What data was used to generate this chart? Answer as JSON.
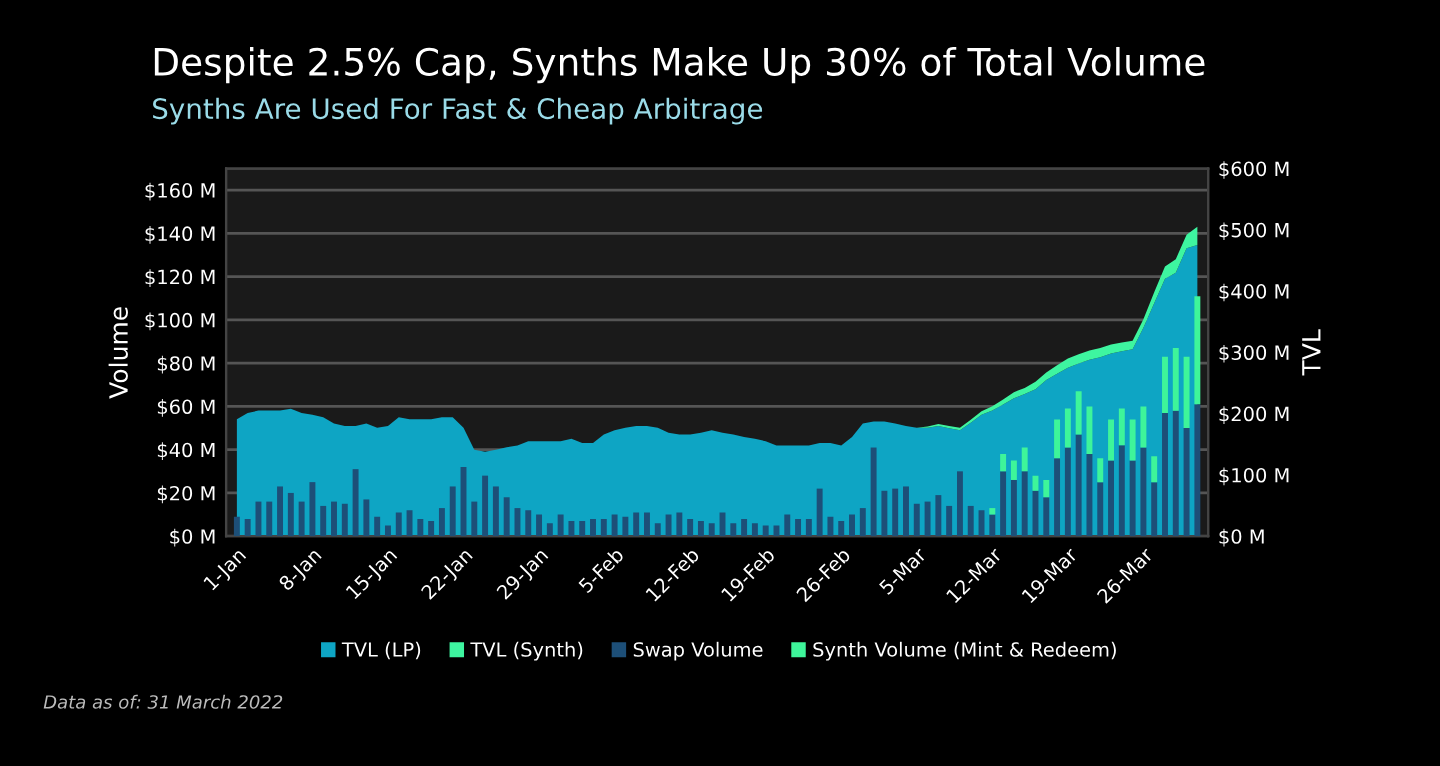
{
  "chart_data": {
    "type": "bar",
    "title": "Despite 2.5% Cap, Synths Make Up 30% of Total Volume",
    "subtitle": "Synths Are Used For Fast & Cheap Arbitrage",
    "ylabel": "Volume",
    "y2label": "TVL",
    "annotations": [
      "Data as of: 31 March 2022"
    ],
    "x": [
      "2022-01-01",
      "2022-01-02",
      "2022-01-03",
      "2022-01-04",
      "2022-01-05",
      "2022-01-06",
      "2022-01-07",
      "2022-01-08",
      "2022-01-09",
      "2022-01-10",
      "2022-01-11",
      "2022-01-12",
      "2022-01-13",
      "2022-01-14",
      "2022-01-15",
      "2022-01-16",
      "2022-01-17",
      "2022-01-18",
      "2022-01-19",
      "2022-01-20",
      "2022-01-21",
      "2022-01-22",
      "2022-01-23",
      "2022-01-24",
      "2022-01-25",
      "2022-01-26",
      "2022-01-27",
      "2022-01-28",
      "2022-01-29",
      "2022-01-30",
      "2022-01-31",
      "2022-02-01",
      "2022-02-02",
      "2022-02-03",
      "2022-02-04",
      "2022-02-05",
      "2022-02-06",
      "2022-02-07",
      "2022-02-08",
      "2022-02-09",
      "2022-02-10",
      "2022-02-11",
      "2022-02-12",
      "2022-02-13",
      "2022-02-14",
      "2022-02-15",
      "2022-02-16",
      "2022-02-17",
      "2022-02-18",
      "2022-02-19",
      "2022-02-20",
      "2022-02-21",
      "2022-02-22",
      "2022-02-23",
      "2022-02-24",
      "2022-02-25",
      "2022-02-26",
      "2022-02-27",
      "2022-02-28",
      "2022-03-01",
      "2022-03-02",
      "2022-03-03",
      "2022-03-04",
      "2022-03-05",
      "2022-03-06",
      "2022-03-07",
      "2022-03-08",
      "2022-03-09",
      "2022-03-10",
      "2022-03-11",
      "2022-03-12",
      "2022-03-13",
      "2022-03-14",
      "2022-03-15",
      "2022-03-16",
      "2022-03-17",
      "2022-03-18",
      "2022-03-19",
      "2022-03-20",
      "2022-03-21",
      "2022-03-22",
      "2022-03-23",
      "2022-03-24",
      "2022-03-25",
      "2022-03-26",
      "2022-03-27",
      "2022-03-28",
      "2022-03-29",
      "2022-03-30",
      "2022-03-31"
    ],
    "stacked": true,
    "series": [
      {
        "name": "TVL (LP)",
        "type": "area",
        "axis": "y2",
        "color": "#0ea5c4",
        "values": [
          191,
          201,
          205,
          205,
          205,
          208,
          201,
          198,
          194,
          184,
          180,
          180,
          184,
          177,
          180,
          194,
          191,
          191,
          191,
          194,
          194,
          177,
          141,
          138,
          141,
          145,
          148,
          155,
          155,
          155,
          155,
          159,
          152,
          152,
          166,
          173,
          177,
          180,
          180,
          177,
          169,
          166,
          166,
          169,
          173,
          169,
          166,
          162,
          159,
          155,
          148,
          148,
          148,
          148,
          152,
          152,
          148,
          162,
          184,
          187,
          187,
          184,
          180,
          177,
          177,
          180,
          176,
          173,
          185,
          198,
          205,
          215,
          225,
          232,
          240,
          255,
          265,
          275,
          282,
          288,
          292,
          298,
          302,
          305,
          340,
          380,
          420,
          430,
          470,
          475
        ]
      },
      {
        "name": "TVL (Synth)",
        "type": "area",
        "axis": "y2",
        "color": "#3ef5a0",
        "values": [
          0,
          0,
          0,
          0,
          0,
          0,
          0,
          0,
          0,
          0,
          0,
          0,
          0,
          0,
          0,
          0,
          0,
          0,
          0,
          0,
          0,
          0,
          0,
          0,
          0,
          0,
          0,
          0,
          0,
          0,
          0,
          0,
          0,
          0,
          0,
          0,
          0,
          0,
          0,
          0,
          0,
          0,
          0,
          0,
          0,
          0,
          0,
          0,
          0,
          0,
          0,
          0,
          0,
          0,
          0,
          0,
          0,
          0,
          0,
          0,
          0,
          0,
          0,
          0,
          2,
          3,
          4,
          4,
          5,
          6,
          7,
          8,
          10,
          10,
          12,
          12,
          14,
          15,
          15,
          15,
          15,
          15,
          14,
          14,
          14,
          18,
          20,
          22,
          22,
          30
        ]
      },
      {
        "name": "Swap Volume",
        "color": "#1d4f78",
        "values": [
          9,
          8,
          16,
          16,
          23,
          20,
          16,
          25,
          14,
          16,
          15,
          31,
          17,
          9,
          5,
          11,
          12,
          8,
          7,
          13,
          23,
          32,
          16,
          28,
          23,
          18,
          13,
          12,
          10,
          6,
          10,
          7,
          7,
          8,
          8,
          10,
          9,
          11,
          11,
          6,
          10,
          11,
          8,
          7,
          6,
          11,
          6,
          8,
          6,
          5,
          5,
          10,
          8,
          8,
          22,
          9,
          7,
          10,
          13,
          41,
          21,
          22,
          23,
          15,
          16,
          19,
          14,
          30,
          14,
          12,
          10,
          30,
          26,
          30,
          21,
          18,
          36,
          41,
          47,
          38,
          25,
          35,
          42,
          35,
          41,
          25,
          57,
          58,
          50,
          61
        ]
      },
      {
        "name": "Synth Volume (Mint & Redeem)",
        "color": "#3ef59a",
        "values": [
          0,
          0,
          0,
          0,
          0,
          0,
          0,
          0,
          0,
          0,
          0,
          0,
          0,
          0,
          0,
          0,
          0,
          0,
          0,
          0,
          0,
          0,
          0,
          0,
          0,
          0,
          0,
          0,
          0,
          0,
          0,
          0,
          0,
          0,
          0,
          0,
          0,
          0,
          0,
          0,
          0,
          0,
          0,
          0,
          0,
          0,
          0,
          0,
          0,
          0,
          0,
          0,
          0,
          0,
          0,
          0,
          0,
          0,
          0,
          0,
          0,
          0,
          0,
          0,
          0,
          0,
          0,
          0,
          0,
          0,
          3,
          8,
          9,
          11,
          7,
          8,
          18,
          18,
          20,
          22,
          11,
          19,
          17,
          19,
          19,
          12,
          26,
          29,
          33,
          50
        ]
      }
    ],
    "xlim": [
      "2021-12-31",
      "2022-04-01"
    ],
    "xticks": [
      {
        "value": "2022-01-01",
        "label": "1-Jan"
      },
      {
        "value": "2022-01-08",
        "label": "8-Jan"
      },
      {
        "value": "2022-01-15",
        "label": "15-Jan"
      },
      {
        "value": "2022-01-22",
        "label": "22-Jan"
      },
      {
        "value": "2022-01-29",
        "label": "29-Jan"
      },
      {
        "value": "2022-02-05",
        "label": "5-Feb"
      },
      {
        "value": "2022-02-12",
        "label": "12-Feb"
      },
      {
        "value": "2022-02-19",
        "label": "19-Feb"
      },
      {
        "value": "2022-02-26",
        "label": "26-Feb"
      },
      {
        "value": "2022-03-05",
        "label": "5-Mar"
      },
      {
        "value": "2022-03-12",
        "label": "12-Mar"
      },
      {
        "value": "2022-03-19",
        "label": "19-Mar"
      },
      {
        "value": "2022-03-26",
        "label": "26-Mar"
      }
    ],
    "ylim": [
      0,
      170
    ],
    "yticks": [
      {
        "value": 0,
        "label": "$0 M"
      },
      {
        "value": 20,
        "label": "$20 M"
      },
      {
        "value": 40,
        "label": "$40 M"
      },
      {
        "value": 60,
        "label": "$60 M"
      },
      {
        "value": 80,
        "label": "$80 M"
      },
      {
        "value": 100,
        "label": "$100 M"
      },
      {
        "value": 120,
        "label": "$120 M"
      },
      {
        "value": 140,
        "label": "$140 M"
      },
      {
        "value": 160,
        "label": "$160 M"
      }
    ],
    "y2lim": [
      0,
      600
    ],
    "y2ticks": [
      {
        "value": 0,
        "label": "$0 M"
      },
      {
        "value": 100,
        "label": "$100 M"
      },
      {
        "value": 200,
        "label": "$200 M"
      },
      {
        "value": 300,
        "label": "$300 M"
      },
      {
        "value": 400,
        "label": "$400 M"
      },
      {
        "value": 500,
        "label": "$500 M"
      },
      {
        "value": 600,
        "label": "$600 M"
      }
    ],
    "grid": "y",
    "legend": "bottom"
  }
}
